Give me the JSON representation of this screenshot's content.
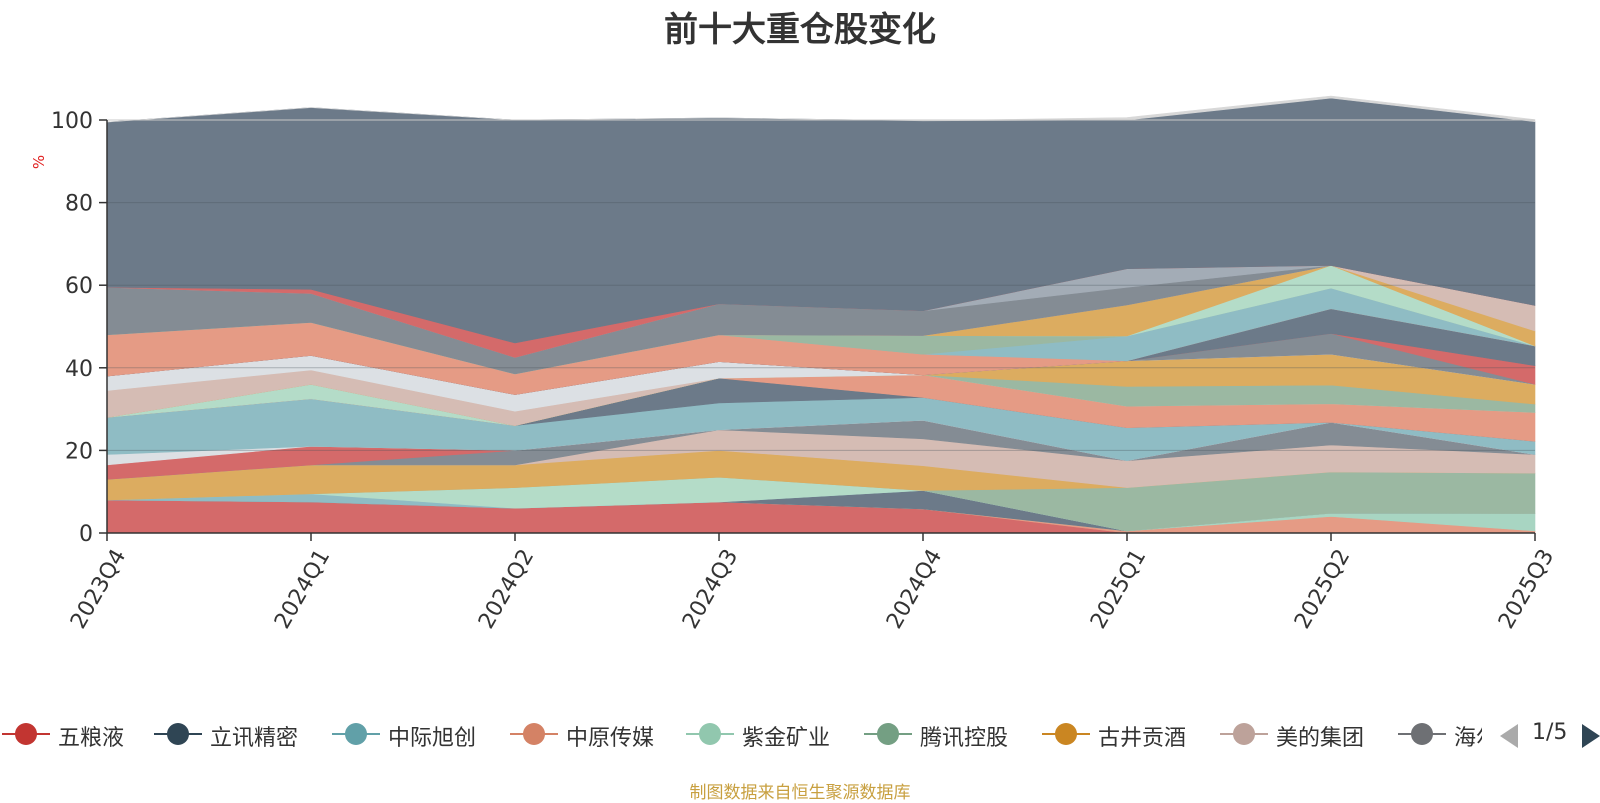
{
  "chart_data": {
    "type": "area",
    "stacked": true,
    "title": "前十大重仓股变化",
    "ylabel": "%",
    "xlabel": "",
    "ylim": [
      0,
      100
    ],
    "yticks": [
      0,
      20,
      40,
      60,
      80,
      100
    ],
    "grid": true,
    "legend_position": "bottom",
    "categories": [
      "2023Q4",
      "2024Q1",
      "2024Q2",
      "2024Q3",
      "2024Q4",
      "2025Q1",
      "2025Q2",
      "2025Q3"
    ],
    "series": [
      {
        "name": "五粮液",
        "color": "#d46a6a",
        "values": [
          8,
          7.5,
          6,
          7.5,
          5.8,
          0,
          0,
          0
        ]
      },
      {
        "name": "",
        "color": "#e59b85",
        "values": [
          0,
          0,
          0,
          0,
          0,
          0.5,
          4,
          0.5
        ]
      },
      {
        "name": "",
        "color": "#a8d5c2",
        "values": [
          0,
          0,
          0,
          0,
          0,
          0,
          0.8,
          4.2
        ]
      },
      {
        "name": "立讯精密",
        "color": "#6c7a89",
        "values": [
          0,
          0,
          0,
          0,
          4.5,
          0,
          0,
          0
        ]
      },
      {
        "name": "中际旭创",
        "color": "#8fbcc4",
        "values": [
          0,
          2,
          0,
          0,
          0,
          0,
          0,
          0
        ]
      },
      {
        "name": "紫金矿业",
        "color": "#b4dcc8",
        "values": [
          0,
          0,
          5,
          6,
          0,
          0,
          0,
          0
        ]
      },
      {
        "name": "腾讯控股",
        "color": "#9bb8a2",
        "values": [
          0,
          0,
          0,
          0,
          0,
          10.5,
          10,
          9.8
        ]
      },
      {
        "name": "古井贡酒",
        "color": "#dcac60",
        "values": [
          5,
          7,
          5.5,
          6.5,
          6,
          0,
          0,
          0
        ]
      },
      {
        "name": "美的集团",
        "color": "#d5bcb4",
        "values": [
          0,
          0,
          0,
          5,
          6.5,
          6.5,
          6.5,
          4.5
        ]
      },
      {
        "name": "海尔智家",
        "color": "#848c94",
        "values": [
          0,
          0,
          3.5,
          0,
          4.5,
          0,
          5.5,
          0
        ]
      },
      {
        "name": "",
        "color": "#d46a6a",
        "values": [
          3.5,
          4.5,
          0,
          0,
          0,
          0,
          0,
          0
        ]
      },
      {
        "name": "",
        "color": "#dce0e4",
        "values": [
          2.5,
          0,
          0,
          0,
          0,
          0,
          0,
          0
        ]
      },
      {
        "name": "",
        "color": "#8fbcc4",
        "values": [
          9,
          11.5,
          6,
          6.5,
          5.5,
          8,
          0,
          3.2
        ]
      },
      {
        "name": "",
        "color": "#6c7a89",
        "values": [
          0,
          0,
          0,
          6,
          0,
          0,
          0,
          0
        ]
      },
      {
        "name": "",
        "color": "#e59b85",
        "values": [
          0,
          0,
          0,
          0,
          5.5,
          5.2,
          4.5,
          7
        ]
      },
      {
        "name": "",
        "color": "#b4dcc8",
        "values": [
          0,
          3.5,
          0,
          0,
          0,
          0,
          0,
          0
        ]
      },
      {
        "name": "",
        "color": "#9bb8a2",
        "values": [
          0,
          0,
          0,
          0,
          0,
          4.8,
          4.5,
          2
        ]
      },
      {
        "name": "",
        "color": "#dcac60",
        "values": [
          0,
          0,
          0,
          0,
          0,
          6.2,
          7.5,
          4.8
        ]
      },
      {
        "name": "",
        "color": "#d5bcb4",
        "values": [
          6.5,
          3.5,
          3.5,
          0,
          0,
          0,
          0,
          0
        ]
      },
      {
        "name": "",
        "color": "#dce0e4",
        "values": [
          3.5,
          3.5,
          4,
          4,
          0,
          0,
          0,
          0
        ]
      },
      {
        "name": "",
        "color": "#848c94",
        "values": [
          0,
          0,
          0,
          0,
          0,
          0,
          5,
          0
        ]
      },
      {
        "name": "",
        "color": "#d46a6a",
        "values": [
          0,
          0,
          0,
          0,
          0,
          0,
          0,
          4.5
        ]
      },
      {
        "name": "",
        "color": "#6c7a89",
        "values": [
          0,
          0,
          0,
          0,
          0,
          0,
          6,
          4.8
        ]
      },
      {
        "name": "",
        "color": "#e59b85",
        "values": [
          10,
          8,
          5,
          6.5,
          5,
          0,
          0,
          0
        ]
      },
      {
        "name": "",
        "color": "#8fbcc4",
        "values": [
          0,
          0,
          0,
          0,
          0,
          6,
          5,
          0
        ]
      },
      {
        "name": "",
        "color": "#9bb8a2",
        "values": [
          0,
          0,
          0,
          0,
          4.5,
          0,
          0,
          0
        ]
      },
      {
        "name": "",
        "color": "#b4dcc8",
        "values": [
          0,
          0,
          0,
          0,
          0,
          0,
          5.5,
          0
        ]
      },
      {
        "name": "",
        "color": "#dcac60",
        "values": [
          0,
          0,
          0,
          0,
          0,
          7.5,
          0,
          3.6
        ]
      },
      {
        "name": "",
        "color": "#d5bcb4",
        "values": [
          0,
          0,
          0,
          0,
          0,
          0,
          0,
          6.2
        ]
      },
      {
        "name": "",
        "color": "#848c94",
        "values": [
          11.5,
          7,
          4,
          7.5,
          6,
          4.3,
          0,
          0
        ]
      },
      {
        "name": "",
        "color": "#a3acb6",
        "values": [
          0,
          0,
          0,
          0,
          0,
          4.5,
          0,
          0
        ]
      },
      {
        "name": "",
        "color": "#d46a6a",
        "values": [
          0,
          1,
          3.5,
          0,
          0,
          0,
          0,
          0
        ]
      },
      {
        "name": "",
        "color": "#6c7a89",
        "values": [
          40,
          44,
          54,
          45,
          46,
          36,
          40.5,
          44.5
        ]
      },
      {
        "name": "",
        "color": "#d8d8d8",
        "values": [
          0,
          0,
          0,
          0,
          0,
          0.6,
          0.5,
          0.5
        ]
      }
    ]
  },
  "legend": {
    "items": [
      {
        "name": "五粮液",
        "color": "#c23531"
      },
      {
        "name": "立讯精密",
        "color": "#2f4554"
      },
      {
        "name": "中际旭创",
        "color": "#61a0a8"
      },
      {
        "name": "中原传媒",
        "color": "#d48265"
      },
      {
        "name": "紫金矿业",
        "color": "#91c7ae"
      },
      {
        "name": "腾讯控股",
        "color": "#749f83"
      },
      {
        "name": "古井贡酒",
        "color": "#ca8622"
      },
      {
        "name": "美的集团",
        "color": "#bda29a"
      },
      {
        "name": "海尔智家",
        "color": "#6e7074"
      }
    ],
    "page_text": "1/5"
  },
  "footer": "制图数据来自恒生聚源数据库"
}
